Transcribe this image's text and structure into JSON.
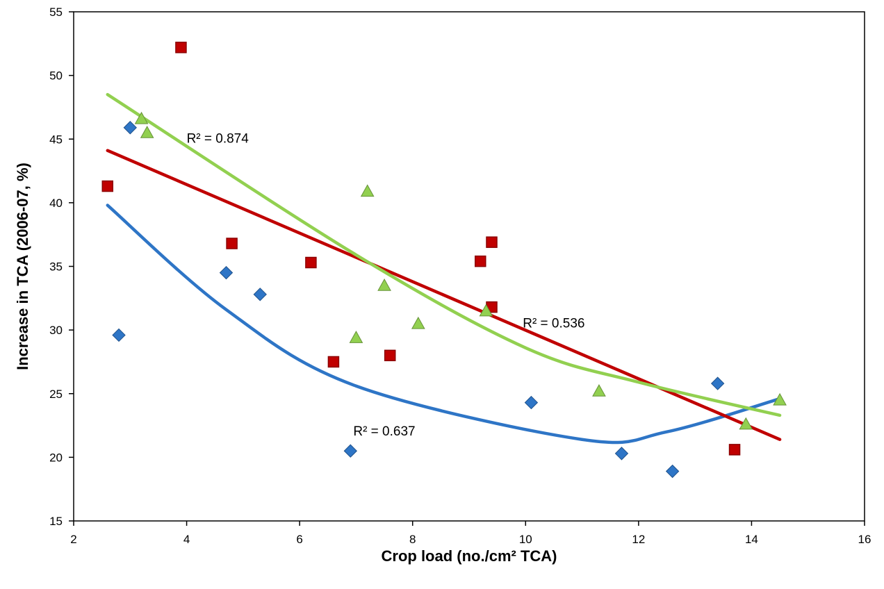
{
  "chart_data": {
    "type": "scatter",
    "xlabel": "Crop load (no./cm² TCA)",
    "ylabel": "Increase in TCA (2006-07, %)",
    "xlim": [
      2,
      16
    ],
    "ylim": [
      15,
      55
    ],
    "xticks": [
      2,
      4,
      6,
      8,
      10,
      12,
      14,
      16
    ],
    "yticks": [
      15,
      20,
      25,
      30,
      35,
      40,
      45,
      50,
      55
    ],
    "grid": false,
    "series": [
      {
        "marker": "diamond",
        "color": "#2e75c6",
        "points": [
          [
            2.8,
            29.6
          ],
          [
            3.0,
            45.9
          ],
          [
            4.7,
            34.5
          ],
          [
            5.3,
            32.8
          ],
          [
            6.9,
            20.5
          ],
          [
            10.1,
            24.3
          ],
          [
            11.7,
            20.3
          ],
          [
            12.6,
            18.9
          ],
          [
            13.4,
            25.8
          ]
        ],
        "trend": {
          "type": "polynomial",
          "x_range": [
            2.6,
            14.5
          ],
          "points": [
            [
              2.6,
              39.8
            ],
            [
              4.7,
              31.6
            ],
            [
              7.0,
              25.6
            ],
            [
              11.0,
              21.4
            ],
            [
              12.5,
              22.0
            ],
            [
              14.5,
              24.6
            ]
          ]
        },
        "r2_label": "R² = 0.637"
      },
      {
        "marker": "square",
        "color": "#c00000",
        "points": [
          [
            2.6,
            41.3
          ],
          [
            3.9,
            52.2
          ],
          [
            4.8,
            36.8
          ],
          [
            6.2,
            35.3
          ],
          [
            6.6,
            27.5
          ],
          [
            7.6,
            28.0
          ],
          [
            9.2,
            35.4
          ],
          [
            9.4,
            36.9
          ],
          [
            9.4,
            31.8
          ],
          [
            13.7,
            20.6
          ]
        ],
        "trend": {
          "type": "linear",
          "x_range": [
            2.6,
            14.5
          ],
          "points": [
            [
              2.6,
              44.1
            ],
            [
              14.5,
              21.4
            ]
          ]
        },
        "r2_label": "R² = 0.536"
      },
      {
        "marker": "triangle",
        "color": "#92d050",
        "points": [
          [
            3.2,
            46.6
          ],
          [
            3.3,
            45.5
          ],
          [
            7.0,
            29.4
          ],
          [
            7.2,
            40.9
          ],
          [
            7.5,
            33.5
          ],
          [
            8.1,
            30.5
          ],
          [
            9.3,
            31.5
          ],
          [
            11.3,
            25.2
          ],
          [
            13.9,
            22.6
          ],
          [
            14.5,
            24.5
          ]
        ],
        "trend": {
          "type": "polynomial",
          "x_range": [
            2.6,
            14.5
          ],
          "points": [
            [
              2.6,
              48.5
            ],
            [
              7.0,
              35.9
            ],
            [
              10.0,
              28.6
            ],
            [
              12.0,
              25.9
            ],
            [
              14.5,
              23.3
            ]
          ]
        },
        "r2_label": "R² = 0.874"
      }
    ],
    "annotations": [
      {
        "text": "R² = 0.874",
        "x": 4.0,
        "y": 44.7
      },
      {
        "text": "R² = 0.536",
        "x": 9.95,
        "y": 30.2
      },
      {
        "text": "R² = 0.637",
        "x": 6.95,
        "y": 21.7
      }
    ]
  }
}
